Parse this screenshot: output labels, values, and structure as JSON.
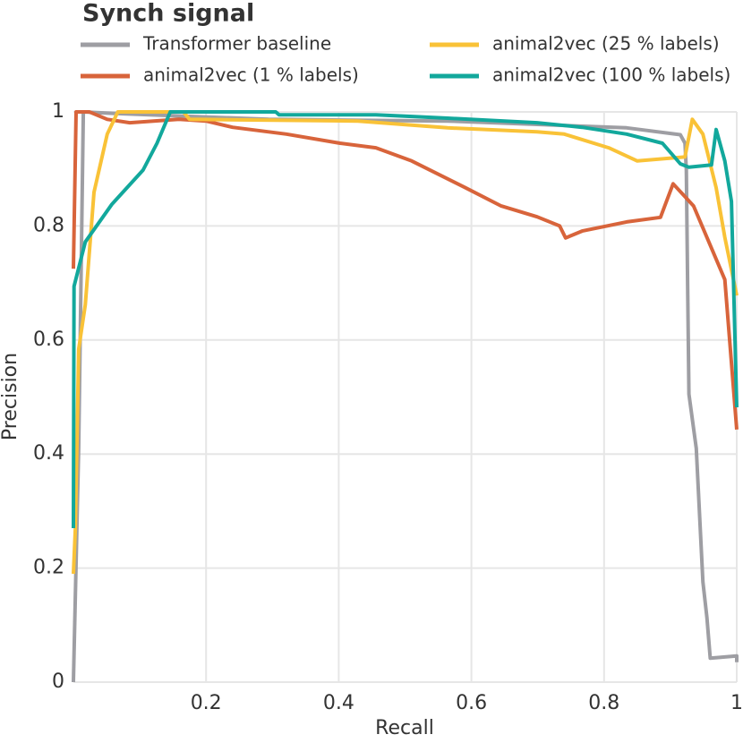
{
  "chart_data": {
    "type": "line",
    "title": "Synch signal",
    "xlabel": "Recall",
    "ylabel": "Precision",
    "xlim": [
      0,
      1
    ],
    "ylim": [
      0,
      1
    ],
    "xticks": [
      0.2,
      0.4,
      0.6,
      0.8,
      1
    ],
    "yticks": [
      0,
      0.2,
      0.4,
      0.6,
      0.8,
      1
    ],
    "grid": true,
    "series": [
      {
        "name": "Transformer baseline",
        "color": "#9e9ea3",
        "x": [
          0,
          0.008,
          0.015,
          0.067,
          0.294,
          0.564,
          0.834,
          0.915,
          0.922,
          0.924,
          0.926,
          0.928,
          0.939,
          0.949,
          0.955,
          0.96,
          1,
          1
        ],
        "values": [
          0,
          0.411,
          1,
          0.997,
          0.987,
          0.984,
          0.972,
          0.96,
          0.945,
          0.898,
          0.69,
          0.505,
          0.41,
          0.176,
          0.113,
          0.042,
          0.046,
          0.035
        ]
      },
      {
        "name": "animal2vec (1 % labels)",
        "color": "#d8643b",
        "x": [
          0,
          0.004,
          0.024,
          0.051,
          0.085,
          0.159,
          0.2,
          0.24,
          0.321,
          0.402,
          0.456,
          0.51,
          0.591,
          0.645,
          0.699,
          0.733,
          0.742,
          0.767,
          0.834,
          0.885,
          0.904,
          0.935,
          0.982,
          1
        ],
        "values": [
          0.725,
          1,
          1,
          0.987,
          0.981,
          0.987,
          0.984,
          0.973,
          0.961,
          0.945,
          0.937,
          0.914,
          0.867,
          0.835,
          0.816,
          0.8,
          0.779,
          0.791,
          0.807,
          0.815,
          0.874,
          0.835,
          0.706,
          0.443
        ]
      },
      {
        "name": "animal2vec (25 % labels)",
        "color": "#f9c237",
        "x": [
          0,
          0.003,
          0.008,
          0.018,
          0.031,
          0.051,
          0.067,
          0.166,
          0.175,
          0.429,
          0.564,
          0.699,
          0.74,
          0.807,
          0.85,
          0.922,
          0.933,
          0.949,
          0.969,
          0.982,
          1
        ],
        "values": [
          0.19,
          0.27,
          0.584,
          0.662,
          0.859,
          0.961,
          1,
          1,
          0.987,
          0.984,
          0.972,
          0.965,
          0.961,
          0.937,
          0.914,
          0.921,
          0.987,
          0.961,
          0.867,
          0.78,
          0.678
        ]
      },
      {
        "name": "animal2vec (100 % labels)",
        "color": "#12a89c",
        "x": [
          0,
          0.001,
          0.018,
          0.058,
          0.105,
          0.126,
          0.146,
          0.305,
          0.31,
          0.456,
          0.564,
          0.699,
          0.767,
          0.834,
          0.888,
          0.915,
          0.928,
          0.962,
          0.969,
          0.982,
          0.992,
          1
        ],
        "values": [
          0.27,
          0.694,
          0.772,
          0.838,
          0.898,
          0.945,
          1,
          1,
          0.995,
          0.995,
          0.989,
          0.981,
          0.973,
          0.961,
          0.945,
          0.909,
          0.903,
          0.907,
          0.969,
          0.914,
          0.843,
          0.482
        ]
      }
    ]
  }
}
